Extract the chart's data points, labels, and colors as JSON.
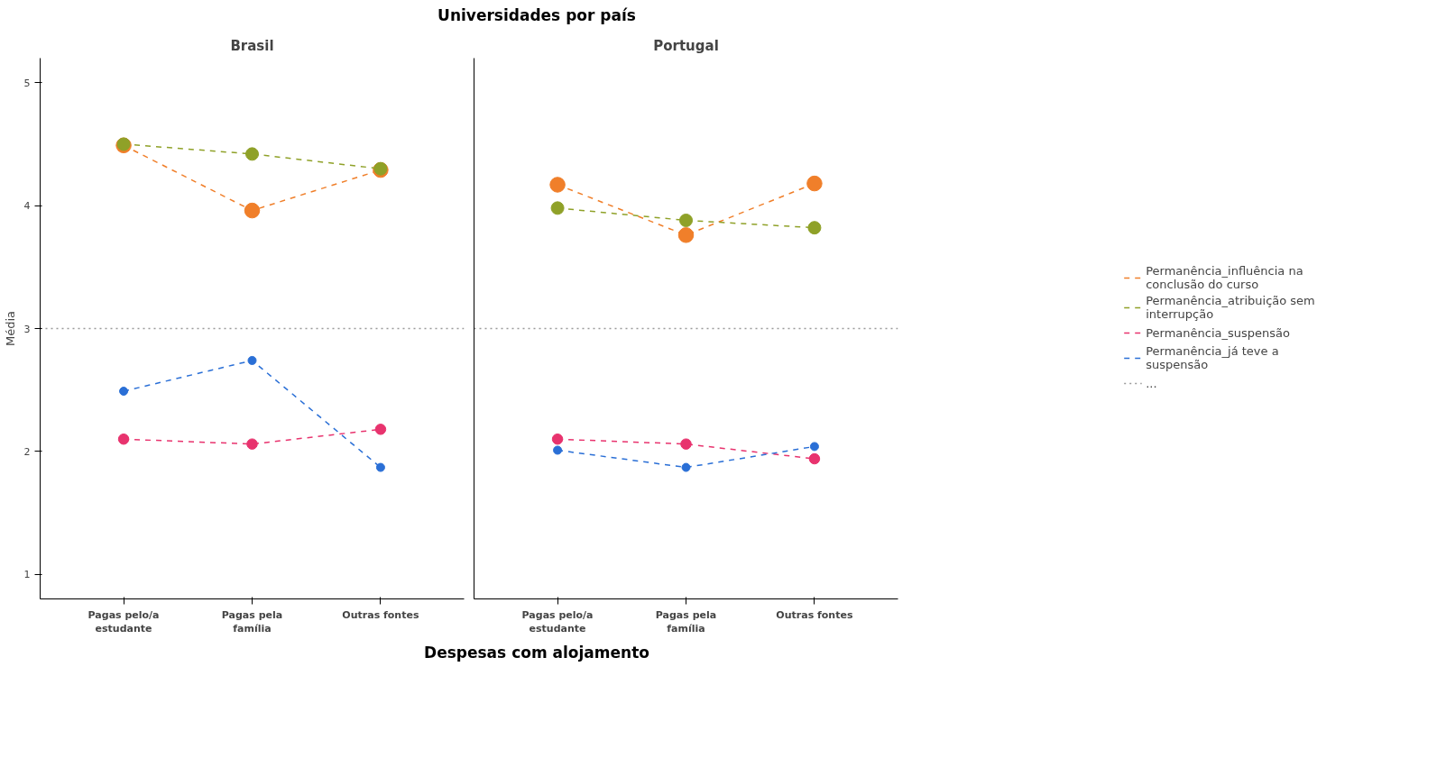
{
  "chart_data": [
    {
      "type": "line",
      "title": "Brasil",
      "annotations": [
        "Universidades por país"
      ],
      "xlabel": "Despesas com alojamento",
      "ylabel": "Média",
      "categories": [
        "Pagas pelo/a estudante",
        "Pagas pela família",
        "Outras fontes"
      ],
      "ylim": [
        0.8,
        5.2
      ],
      "yticks": [
        1,
        2,
        3,
        4,
        5
      ],
      "marker": "circle",
      "line_style": "dashed",
      "grid": false,
      "series": [
        {
          "color": "#f07f2a",
          "values": [
            4.49,
            3.96,
            4.29
          ]
        },
        {
          "color": "#8fa128",
          "values": [
            4.5,
            4.42,
            4.3
          ]
        },
        {
          "color": "#e8336e",
          "values": [
            2.1,
            2.06,
            2.18
          ]
        },
        {
          "color": "#2a6fd6",
          "values": [
            2.49,
            2.74,
            1.87
          ]
        }
      ],
      "ref_lines": [
        {
          "axis": "y",
          "value": 3,
          "color": "#999999",
          "line_style": "dotted"
        }
      ]
    },
    {
      "type": "line",
      "title": "Portugal",
      "categories": [
        "Pagas pelo/a estudante",
        "Pagas pela família",
        "Outras fontes"
      ],
      "ylim": [
        0.8,
        5.2
      ],
      "yticks": [
        1,
        2,
        3,
        4,
        5
      ],
      "tick_labels": "x",
      "marker": "circle",
      "line_style": "dashed",
      "grid": false,
      "legend": "right",
      "series": [
        {
          "name": "Permanência_influência na conclusão do curso",
          "color": "#f07f2a",
          "values": [
            4.17,
            3.76,
            4.18
          ]
        },
        {
          "name": "Permanência_atribuição sem interrupção",
          "color": "#8fa128",
          "values": [
            3.98,
            3.88,
            3.82
          ]
        },
        {
          "name": "Permanência_suspensão",
          "color": "#e8336e",
          "values": [
            2.1,
            2.06,
            1.94
          ]
        },
        {
          "name": "Permanência_já teve a suspensão",
          "color": "#2a6fd6",
          "values": [
            2.01,
            1.87,
            2.04
          ]
        }
      ],
      "ref_lines": [
        {
          "axis": "y",
          "value": 3,
          "label": "...",
          "color": "#999999",
          "line_style": "dotted"
        }
      ]
    }
  ]
}
